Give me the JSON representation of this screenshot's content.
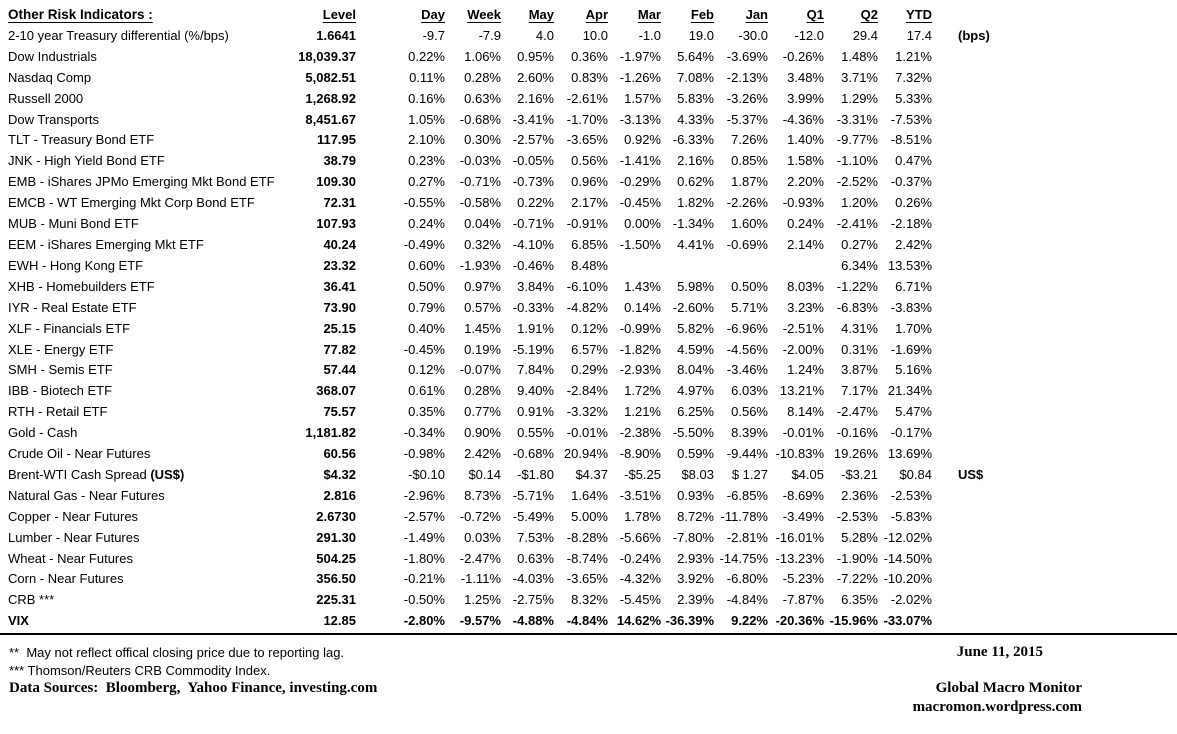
{
  "title": "Other Risk Indicators :",
  "columns": [
    "Level",
    "Day",
    "Week",
    "May",
    "Apr",
    "Mar",
    "Feb",
    "Jan",
    "Q1",
    "Q2",
    "YTD"
  ],
  "rows": [
    {
      "label": "2-10 year Treasury differential (%/bps)",
      "values": [
        "1.6641",
        "-9.7",
        "-7.9",
        "4.0",
        "10.0",
        "-1.0",
        "19.0",
        "-30.0",
        "-12.0",
        "29.4",
        "17.4"
      ],
      "note": "(bps)"
    },
    {
      "label": "Dow Industrials",
      "values": [
        "18,039.37",
        "0.22%",
        "1.06%",
        "0.95%",
        "0.36%",
        "-1.97%",
        "5.64%",
        "-3.69%",
        "-0.26%",
        "1.48%",
        "1.21%"
      ]
    },
    {
      "label": "Nasdaq Comp",
      "values": [
        "5,082.51",
        "0.11%",
        "0.28%",
        "2.60%",
        "0.83%",
        "-1.26%",
        "7.08%",
        "-2.13%",
        "3.48%",
        "3.71%",
        "7.32%"
      ]
    },
    {
      "label": "Russell 2000",
      "values": [
        "1,268.92",
        "0.16%",
        "0.63%",
        "2.16%",
        "-2.61%",
        "1.57%",
        "5.83%",
        "-3.26%",
        "3.99%",
        "1.29%",
        "5.33%"
      ]
    },
    {
      "label": "Dow Transports",
      "values": [
        "8,451.67",
        "1.05%",
        "-0.68%",
        "-3.41%",
        "-1.70%",
        "-3.13%",
        "4.33%",
        "-5.37%",
        "-4.36%",
        "-3.31%",
        "-7.53%"
      ]
    },
    {
      "label": "TLT - Treasury Bond ETF",
      "values": [
        "117.95",
        "2.10%",
        "0.30%",
        "-2.57%",
        "-3.65%",
        "0.92%",
        "-6.33%",
        "7.26%",
        "1.40%",
        "-9.77%",
        "-8.51%"
      ]
    },
    {
      "label": "JNK - High Yield Bond ETF",
      "values": [
        "38.79",
        "0.23%",
        "-0.03%",
        "-0.05%",
        "0.56%",
        "-1.41%",
        "2.16%",
        "0.85%",
        "1.58%",
        "-1.10%",
        "0.47%"
      ]
    },
    {
      "label": "EMB - iShares JPMo Emerging Mkt Bond ETF",
      "values": [
        "109.30",
        "0.27%",
        "-0.71%",
        "-0.73%",
        "0.96%",
        "-0.29%",
        "0.62%",
        "1.87%",
        "2.20%",
        "-2.52%",
        "-0.37%"
      ]
    },
    {
      "label": "EMCB - WT Emerging Mkt Corp Bond ETF",
      "values": [
        "72.31",
        "-0.55%",
        "-0.58%",
        "0.22%",
        "2.17%",
        "-0.45%",
        "1.82%",
        "-2.26%",
        "-0.93%",
        "1.20%",
        "0.26%"
      ]
    },
    {
      "label": "MUB - Muni Bond ETF",
      "values": [
        "107.93",
        "0.24%",
        "0.04%",
        "-0.71%",
        "-0.91%",
        "0.00%",
        "-1.34%",
        "1.60%",
        "0.24%",
        "-2.41%",
        "-2.18%"
      ]
    },
    {
      "label": "EEM - iShares Emerging Mkt ETF",
      "values": [
        "40.24",
        "-0.49%",
        "0.32%",
        "-4.10%",
        "6.85%",
        "-1.50%",
        "4.41%",
        "-0.69%",
        "2.14%",
        "0.27%",
        "2.42%"
      ]
    },
    {
      "label": "EWH - Hong Kong ETF",
      "values": [
        "23.32",
        "0.60%",
        "-1.93%",
        "-0.46%",
        "8.48%",
        "",
        "",
        "",
        "",
        "6.34%",
        "13.53%"
      ]
    },
    {
      "label": "XHB - Homebuilders ETF",
      "values": [
        "36.41",
        "0.50%",
        "0.97%",
        "3.84%",
        "-6.10%",
        "1.43%",
        "5.98%",
        "0.50%",
        "8.03%",
        "-1.22%",
        "6.71%"
      ]
    },
    {
      "label": "IYR - Real Estate ETF",
      "values": [
        "73.90",
        "0.79%",
        "0.57%",
        "-0.33%",
        "-4.82%",
        "0.14%",
        "-2.60%",
        "5.71%",
        "3.23%",
        "-6.83%",
        "-3.83%"
      ]
    },
    {
      "label": "XLF - Financials ETF",
      "values": [
        "25.15",
        "0.40%",
        "1.45%",
        "1.91%",
        "0.12%",
        "-0.99%",
        "5.82%",
        "-6.96%",
        "-2.51%",
        "4.31%",
        "1.70%"
      ]
    },
    {
      "label": "XLE - Energy ETF",
      "values": [
        "77.82",
        "-0.45%",
        "0.19%",
        "-5.19%",
        "6.57%",
        "-1.82%",
        "4.59%",
        "-4.56%",
        "-2.00%",
        "0.31%",
        "-1.69%"
      ]
    },
    {
      "label": "SMH - Semis ETF",
      "values": [
        "57.44",
        "0.12%",
        "-0.07%",
        "7.84%",
        "0.29%",
        "-2.93%",
        "8.04%",
        "-3.46%",
        "1.24%",
        "3.87%",
        "5.16%"
      ]
    },
    {
      "label": "IBB - Biotech ETF",
      "values": [
        "368.07",
        "0.61%",
        "0.28%",
        "9.40%",
        "-2.84%",
        "1.72%",
        "4.97%",
        "6.03%",
        "13.21%",
        "7.17%",
        "21.34%"
      ]
    },
    {
      "label": "RTH - Retail ETF",
      "values": [
        "75.57",
        "0.35%",
        "0.77%",
        "0.91%",
        "-3.32%",
        "1.21%",
        "6.25%",
        "0.56%",
        "8.14%",
        "-2.47%",
        "5.47%"
      ]
    },
    {
      "label": "Gold - Cash",
      "values": [
        "1,181.82",
        "-0.34%",
        "0.90%",
        "0.55%",
        "-0.01%",
        "-2.38%",
        "-5.50%",
        "8.39%",
        "-0.01%",
        "-0.16%",
        "-0.17%"
      ]
    },
    {
      "label": "Crude Oil - Near Futures",
      "values": [
        "60.56",
        "-0.98%",
        "2.42%",
        "-0.68%",
        "20.94%",
        "-8.90%",
        "0.59%",
        "-9.44%",
        "-10.83%",
        "19.26%",
        "13.69%"
      ]
    },
    {
      "label": "Brent-WTI Cash Spread ",
      "label_bold_part": "(US$)",
      "values": [
        "$4.32",
        "-$0.10",
        "$0.14",
        "-$1.80",
        "$4.37",
        "-$5.25",
        "$8.03",
        "$ 1.27",
        "$4.05",
        "-$3.21",
        "$0.84"
      ],
      "note": "US$"
    },
    {
      "label": "Natural Gas - Near Futures",
      "values": [
        "2.816",
        "-2.96%",
        "8.73%",
        "-5.71%",
        "1.64%",
        "-3.51%",
        "0.93%",
        "-6.85%",
        "-8.69%",
        "2.36%",
        "-2.53%"
      ]
    },
    {
      "label": "Copper - Near Futures",
      "values": [
        "2.6730",
        "-2.57%",
        "-0.72%",
        "-5.49%",
        "5.00%",
        "1.78%",
        "8.72%",
        "-11.78%",
        "-3.49%",
        "-2.53%",
        "-5.83%"
      ]
    },
    {
      "label": "Lumber - Near Futures",
      "values": [
        "291.30",
        "-1.49%",
        "0.03%",
        "7.53%",
        "-8.28%",
        "-5.66%",
        "-7.80%",
        "-2.81%",
        "-16.01%",
        "5.28%",
        "-12.02%"
      ]
    },
    {
      "label": "Wheat - Near Futures",
      "values": [
        "504.25",
        "-1.80%",
        "-2.47%",
        "0.63%",
        "-8.74%",
        "-0.24%",
        "2.93%",
        "-14.75%",
        "-13.23%",
        "-1.90%",
        "-14.50%"
      ]
    },
    {
      "label": "Corn - Near Futures",
      "values": [
        "356.50",
        "-0.21%",
        "-1.11%",
        "-4.03%",
        "-3.65%",
        "-4.32%",
        "3.92%",
        "-6.80%",
        "-5.23%",
        "-7.22%",
        "-10.20%"
      ]
    },
    {
      "label": "CRB ***",
      "values": [
        "225.31",
        "-0.50%",
        "1.25%",
        "-2.75%",
        "8.32%",
        "-5.45%",
        "2.39%",
        "-4.84%",
        "-7.87%",
        "6.35%",
        "-2.02%"
      ]
    },
    {
      "label": "VIX",
      "bold": true,
      "values": [
        "12.85",
        "-2.80%",
        "-9.57%",
        "-4.88%",
        "-4.84%",
        "14.62%",
        "-36.39%",
        "9.22%",
        "-20.36%",
        "-15.96%",
        "-33.07%"
      ]
    }
  ],
  "footnotes": [
    "**  May not reflect offical closing price due to reporting lag.",
    "*** Thomson/Reuters CRB Commodity Index."
  ],
  "footer": {
    "data_sources": "Data Sources:  Bloomberg,  Yahoo Finance, investing.com",
    "date": "June 11, 2015",
    "brand": "Global Macro Monitor",
    "url": "macromon.wordpress.com"
  }
}
